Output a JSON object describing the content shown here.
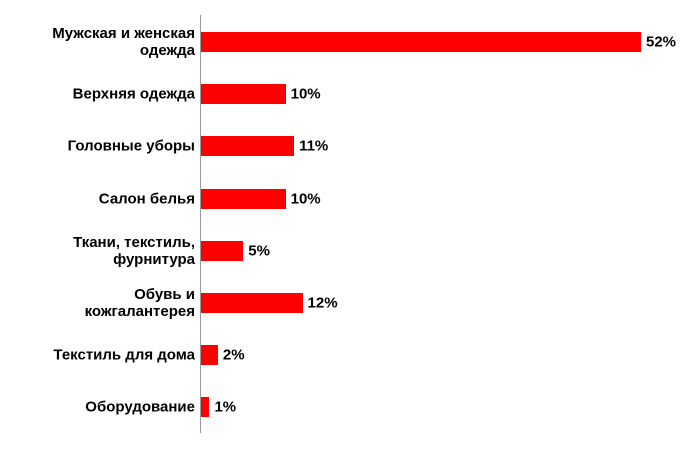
{
  "chart_data": {
    "type": "bar",
    "orientation": "horizontal",
    "categories": [
      "Мужская и женская\nодежда",
      "Верхняя одежда",
      "Головные уборы",
      "Салон белья",
      "Ткани, текстиль,\nфурнитура",
      "Обувь и\nкожгалантерея",
      "Текстиль для дома",
      "Оборудование"
    ],
    "values": [
      52,
      10,
      11,
      10,
      5,
      12,
      2,
      1
    ],
    "value_labels": [
      "52%",
      "10%",
      "11%",
      "10%",
      "5%",
      "12%",
      "2%",
      "1%"
    ],
    "color": "#ff0000"
  }
}
